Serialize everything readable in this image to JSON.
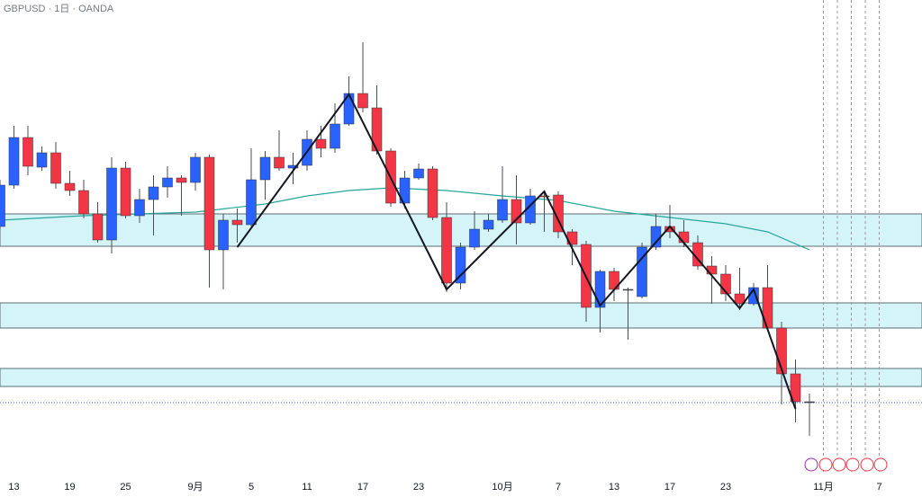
{
  "chart_data": {
    "type": "candlestick",
    "title": "GBPUSD · 1日 · OANDA",
    "categories": [
      null,
      "13",
      null,
      null,
      null,
      "19",
      null,
      null,
      null,
      "25",
      null,
      null,
      null,
      null,
      "9月",
      null,
      null,
      null,
      "5",
      null,
      null,
      null,
      "11",
      null,
      null,
      null,
      "17",
      null,
      null,
      null,
      "23",
      null,
      null,
      null,
      null,
      null,
      "10月",
      null,
      null,
      null,
      "7",
      null,
      null,
      null,
      "13",
      null,
      null,
      null,
      "17",
      null,
      null,
      null,
      "23",
      null,
      null,
      null,
      null,
      null,
      null,
      "11月",
      null,
      null,
      null,
      "7"
    ],
    "open": [
      1.33968,
      1.34704,
      1.35552,
      1.35024,
      1.3528,
      1.34736,
      1.34608,
      1.34192,
      1.33728,
      1.35008,
      1.3416,
      1.34448,
      1.34672,
      1.34832,
      1.34752,
      1.352,
      1.33552,
      1.3408,
      1.34,
      1.348,
      1.352,
      1.35008,
      1.35056,
      1.3552,
      1.3536,
      1.35792,
      1.36336,
      1.3608,
      1.35312,
      1.34384,
      1.34832,
      1.34992,
      1.34128,
      1.3296,
      1.336,
      1.3392,
      1.3408,
      1.34448,
      1.34032,
      1.34512,
      1.34528,
      1.33872,
      1.33648,
      1.32528,
      1.33168,
      1.32848,
      1.3272,
      1.336,
      1.33968,
      1.33872,
      1.3368,
      1.33264,
      1.3312,
      1.32768,
      1.32592,
      1.3288,
      1.3216,
      1.31344,
      1.30848,
      null,
      null,
      null,
      null,
      null
    ],
    "high": [
      1.348,
      1.3576,
      1.3576,
      1.35392,
      1.35472,
      1.3496,
      1.348,
      1.344,
      1.352,
      1.3512,
      1.3464,
      1.3488,
      1.3504,
      1.3488,
      1.3528,
      1.35248,
      1.34192,
      1.34288,
      1.3536,
      1.35312,
      1.3568,
      1.3528,
      1.3568,
      1.3576,
      1.3616,
      1.3664,
      1.37248,
      1.3648,
      1.3536,
      1.3496,
      1.35088,
      1.3504,
      1.344,
      1.3368,
      1.3424,
      1.34192,
      1.3504,
      1.3488,
      1.3464,
      1.34608,
      1.34592,
      1.3392,
      1.33712,
      1.332,
      1.33232,
      1.3288,
      1.3368,
      1.34192,
      1.34352,
      1.3408,
      1.33808,
      1.3344,
      1.3328,
      1.33232,
      1.3296,
      1.3328,
      1.32272,
      1.316,
      1.30992,
      null,
      null,
      null,
      null,
      null
    ],
    "low": [
      1.3392,
      1.3464,
      1.3488,
      1.3496,
      1.3464,
      1.34512,
      1.34112,
      1.3368,
      1.33488,
      1.34112,
      1.34032,
      1.33808,
      1.3448,
      1.3416,
      1.34608,
      1.3288,
      1.32848,
      1.3368,
      1.33968,
      1.34448,
      1.3496,
      1.3472,
      1.3496,
      1.352,
      1.3528,
      1.3576,
      1.36,
      1.35248,
      1.3432,
      1.34288,
      1.348,
      1.3408,
      1.328,
      1.32848,
      1.33552,
      1.33872,
      1.34032,
      1.33648,
      1.34,
      1.33872,
      1.3376,
      1.3328,
      1.32272,
      1.3208,
      1.3264,
      1.31952,
      1.32688,
      1.33552,
      1.3376,
      1.336,
      1.332,
      1.32592,
      1.3264,
      1.3248,
      1.3256,
      1.32112,
      1.308,
      1.3048,
      1.3024,
      null,
      null,
      null,
      null,
      null
    ],
    "close": [
      1.34704,
      1.35552,
      1.3504,
      1.3528,
      1.34736,
      1.34608,
      1.34192,
      1.33728,
      1.35008,
      1.3416,
      1.34448,
      1.34672,
      1.34832,
      1.34752,
      1.352,
      1.33552,
      1.3408,
      1.34,
      1.348,
      1.352,
      1.35008,
      1.35056,
      1.3552,
      1.3536,
      1.35792,
      1.36336,
      1.3608,
      1.35312,
      1.34384,
      1.34832,
      1.34992,
      1.34128,
      1.3296,
      1.336,
      1.3392,
      1.3408,
      1.34448,
      1.34032,
      1.34512,
      1.34496,
      1.33872,
      1.33648,
      1.32528,
      1.33168,
      1.32848,
      1.32848,
      1.336,
      1.33968,
      1.33872,
      1.3368,
      1.33264,
      1.3312,
      1.32768,
      1.32592,
      1.3288,
      1.3216,
      1.31344,
      1.30848,
      1.30848,
      null,
      null,
      null,
      null,
      null
    ],
    "up_color": "#2962ff",
    "down_color": "#f23645",
    "doji_color": "#555555",
    "ylim": [
      1.296,
      1.38
    ],
    "moving_average": {
      "color": "#26a69a",
      "x": [
        0,
        6,
        14,
        19,
        22,
        25,
        28,
        32,
        36,
        40,
        44,
        48,
        52,
        55,
        58
      ],
      "values": [
        1.3408,
        1.3416,
        1.34224,
        1.34368,
        1.34512,
        1.34608,
        1.34656,
        1.34608,
        1.34512,
        1.34432,
        1.3424,
        1.34128,
        1.34016,
        1.33872,
        1.33552
      ]
    },
    "trend_line": {
      "color": "#131722",
      "x": [
        17,
        25,
        32,
        39,
        43,
        48,
        53,
        54,
        57
      ],
      "values": [
        1.336,
        1.3632,
        1.32848,
        1.34592,
        1.3256,
        1.33968,
        1.32512,
        1.32848,
        1.3072
      ]
    },
    "zones": [
      {
        "top": 1.34192,
        "bottom": 1.33616
      },
      {
        "top": 1.32608,
        "bottom": 1.3216
      },
      {
        "top": 1.3144,
        "bottom": 1.3112
      }
    ],
    "zone_color": "#b2ebf2",
    "price_line": 1.30832
  }
}
